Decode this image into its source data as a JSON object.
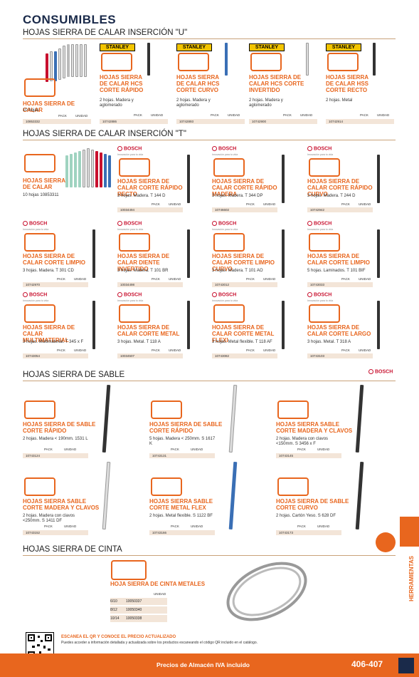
{
  "header": {
    "title": "CONSUMIBLES"
  },
  "sections": [
    "HOJAS SIERRA DE CALAR INSERCIÓN \"U\"",
    "HOJAS SIERRA DE CALAR INSERCIÓN \"T\"",
    "HOJAS SIERRA DE SABLE",
    "HOJAS SIERRA DE CINTA"
  ],
  "labels": {
    "pack": "PACK",
    "unidad": "UNIDAD",
    "stanley": "STANLEY",
    "bosch": "BOSCH",
    "bosch_sub": "Innovación para tu vida"
  },
  "u_cards": [
    {
      "name": "HOJAS SIERRA DE CALAR",
      "desc": "10 hojas",
      "code": "10853332"
    },
    {
      "name": "HOJAS SIERRA DE CALAR HCS CORTE RÁPIDO",
      "desc": "2 hojas. Madera y aglomerado",
      "code": "10742886"
    },
    {
      "name": "HOJAS SIERRA DE CALAR HCS CORTE CURVO",
      "desc": "2 hojas. Madera y aglomerado",
      "code": "10742893"
    },
    {
      "name": "HOJAS SIERRA DE CALAR HCS CORTE INVERTIDO",
      "desc": "2 hojas. Madera y aglomerado",
      "code": "10742900"
    },
    {
      "name": "HOJAS SIERRA DE CALAR HSS CORTE RECTO",
      "desc": "2 hojas. Metal",
      "code": "10742914"
    }
  ],
  "t_cards": [
    {
      "name": "HOJAS SIERRA DE CALAR",
      "desc": "10 hojas 10853311",
      "code": ""
    },
    {
      "name": "HOJAS SIERRA DE CALAR CORTE RÁPIDO RECTO",
      "desc": "3 hojas. Madera. T 144 D",
      "code": "10034494"
    },
    {
      "name": "HOJAS SIERRA DE CALAR CORTE RÁPIDO MADERA",
      "desc": "3 hojas. Madera. T 344 DP",
      "code": "10746602"
    },
    {
      "name": "HOJAS SIERRA DE CALAR CORTE RÁPIDO CURVO",
      "desc": "3 hojas. Madera. T 244 D",
      "code": "10742942"
    },
    {
      "name": "HOJAS SIERRA DE CALAR CORTE LIMPIO",
      "desc": "3 hojas. Madera. T 301 CD",
      "code": "10742970"
    },
    {
      "name": "HOJAS SIERRA DE CALAR DIENTE INVERTIDO",
      "desc": "3 hojas. Madera. T 101 BR",
      "code": "10034498"
    },
    {
      "name": "HOJAS SIERRA DE CALAR CORTE LIMPIO CURVO",
      "desc": "3 hojas. Madera. T 101 AO",
      "code": "10743012"
    },
    {
      "name": "HOJAS SIERRA DE CALAR CORTE LIMPIO",
      "desc": "5 hojas. Laminados. T 101 BIF",
      "code": "10743033"
    },
    {
      "name": "HOJAS SIERRA DE CALAR MULTIMATERIAL",
      "desc": "3 hojas. Multimaterial. T 345 x F",
      "code": "10743054"
    },
    {
      "name": "HOJAS SIERRA DE CALAR CORTE METAL",
      "desc": "3 hojas. Metal. T 118 A",
      "code": "10034507"
    },
    {
      "name": "HOJAS SIERRA DE CALAR CORTE METAL FLEXI",
      "desc": "3 hojas. Metal flexible. T 118 AF",
      "code": "10743082"
    },
    {
      "name": "HOJAS SIERRA DE CALAR CORTE LARGO",
      "desc": "3 hojas. Metal. T 318 A",
      "code": "10743103"
    }
  ],
  "sable_cards": [
    {
      "name": "HOJAS SIERRA DE SABLE CORTE RÁPIDO",
      "desc": "2 hojas. Madera < 190mm. 1531 L",
      "code": "10743124"
    },
    {
      "name": "HOJAS SIERRA DE SABLE CORTE RÁPIDO",
      "desc": "5 hojas. Madera < 250mm. S 1617 K",
      "code": "10743131"
    },
    {
      "name": "HOJAS SIERRA SABLE CORTE MADERA Y CLAVOS",
      "desc": "2 hojas. Madera con clavos <150mm. S 3456 x F",
      "code": "10743145"
    },
    {
      "name": "HOJAS SIERRA SABLE CORTE MADERA Y CLAVOS",
      "desc": "2 hojas. Madera con clavos <250mm. S 1411 DF",
      "code": "10743152"
    },
    {
      "name": "HOJAS SIERRA SABLE CORTE METAL FLEX",
      "desc": "2 hojas. Metal flexible. S 1122 BF",
      "code": "10743166"
    },
    {
      "name": "HOJAS SIERRA DE SABLE CORTE CURVO",
      "desc": "2 hojas. Cartón Yeso. S 628 DF",
      "code": "10743173"
    }
  ],
  "cinta": {
    "name": "HOJA SIERRA DE CINTA METALES",
    "unidad": "UNIDAD",
    "rows": [
      {
        "size": "6/10",
        "code": "10050337"
      },
      {
        "size": "8/12",
        "code": "10050340"
      },
      {
        "size": "10/14",
        "code": "10050338"
      }
    ]
  },
  "side_label": "HERRAMIENTAS",
  "qr_text": {
    "heading": "ESCANEA EL QR Y CONOCE EL PRECIO ACTUALIZADO",
    "body": "Puedes acceder a información detallada y actualizada sobre los productos escaneando el código QR incluido en el catálogo."
  },
  "footer": {
    "text": "Precios de Almacén IVA incluido",
    "pages": "406-407"
  }
}
